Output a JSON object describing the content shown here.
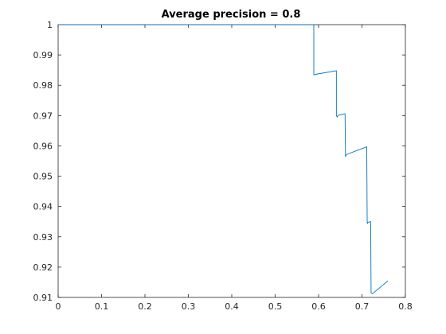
{
  "chart_data": {
    "type": "line",
    "title": "Average precision = 0.8",
    "xlabel": "",
    "ylabel": "",
    "xlim": [
      0,
      0.8
    ],
    "ylim": [
      0.91,
      1
    ],
    "xticks": [
      0,
      0.1,
      0.2,
      0.3,
      0.4,
      0.5,
      0.6,
      0.7,
      0.8
    ],
    "xtick_labels": [
      "0",
      "0.1",
      "0.2",
      "0.3",
      "0.4",
      "0.5",
      "0.6",
      "0.7",
      "0.8"
    ],
    "yticks": [
      0.91,
      0.92,
      0.93,
      0.94,
      0.95,
      0.96,
      0.97,
      0.98,
      0.99,
      1
    ],
    "ytick_labels": [
      "0.91",
      "0.92",
      "0.93",
      "0.94",
      "0.95",
      "0.96",
      "0.97",
      "0.98",
      "0.99",
      "1"
    ],
    "grid": false,
    "series": [
      {
        "color": "#0072bd",
        "x": [
          0,
          0.589,
          0.589,
          0.59,
          0.592,
          0.593,
          0.641,
          0.641,
          0.643,
          0.645,
          0.661,
          0.662,
          0.663,
          0.665,
          0.711,
          0.712,
          0.713,
          0.714,
          0.72,
          0.721,
          0.724,
          0.76
        ],
        "y": [
          1,
          1,
          0.9835,
          0.9834,
          0.9835,
          0.9836,
          0.9848,
          0.97,
          0.9695,
          0.9701,
          0.9706,
          0.9565,
          0.9568,
          0.9572,
          0.9597,
          0.9346,
          0.9344,
          0.9348,
          0.935,
          0.9115,
          0.9112,
          0.9155
        ]
      }
    ]
  }
}
